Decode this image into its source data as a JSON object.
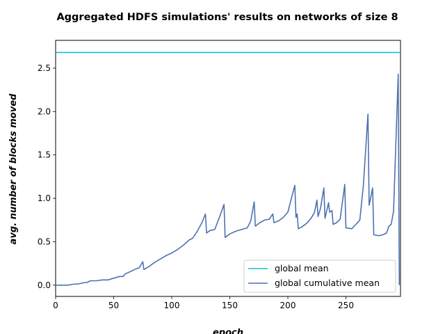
{
  "chart_data": {
    "type": "line",
    "title": "Aggregated HDFS simulations' results on networks of size 8",
    "xlabel": "epoch",
    "ylabel": "avg. number of blocks moved",
    "xlim": [
      0,
      297
    ],
    "ylim": [
      -0.13,
      2.82
    ],
    "x_ticks": [
      0,
      50,
      100,
      150,
      200,
      250
    ],
    "y_ticks": [
      0.0,
      0.5,
      1.0,
      1.5,
      2.0,
      2.5
    ],
    "x_tick_labels": [
      "0",
      "50",
      "100",
      "150",
      "200",
      "250"
    ],
    "y_tick_labels": [
      "0.0",
      "0.5",
      "1.0",
      "1.5",
      "2.0",
      "2.5"
    ],
    "grid": false,
    "legend_position": "lower-right",
    "series": [
      {
        "name": "global mean",
        "color": "#17becf",
        "kind": "hline",
        "y": 2.68
      },
      {
        "name": "global cumulative mean",
        "color": "#4c72b0",
        "kind": "line",
        "points": [
          [
            0,
            0.0
          ],
          [
            5,
            0.0
          ],
          [
            10,
            0.0
          ],
          [
            15,
            0.01
          ],
          [
            20,
            0.015
          ],
          [
            25,
            0.03
          ],
          [
            27,
            0.03
          ],
          [
            30,
            0.05
          ],
          [
            35,
            0.05
          ],
          [
            40,
            0.06
          ],
          [
            45,
            0.06
          ],
          [
            50,
            0.08
          ],
          [
            55,
            0.1
          ],
          [
            58,
            0.1
          ],
          [
            60,
            0.13
          ],
          [
            65,
            0.16
          ],
          [
            68,
            0.18
          ],
          [
            72,
            0.2
          ],
          [
            75,
            0.27
          ],
          [
            76,
            0.18
          ],
          [
            80,
            0.21
          ],
          [
            85,
            0.26
          ],
          [
            90,
            0.3
          ],
          [
            95,
            0.34
          ],
          [
            100,
            0.37
          ],
          [
            105,
            0.41
          ],
          [
            110,
            0.46
          ],
          [
            115,
            0.52
          ],
          [
            118,
            0.54
          ],
          [
            122,
            0.62
          ],
          [
            126,
            0.72
          ],
          [
            129,
            0.82
          ],
          [
            130,
            0.6
          ],
          [
            133,
            0.63
          ],
          [
            137,
            0.64
          ],
          [
            141,
            0.78
          ],
          [
            145,
            0.93
          ],
          [
            146,
            0.55
          ],
          [
            150,
            0.59
          ],
          [
            155,
            0.62
          ],
          [
            160,
            0.64
          ],
          [
            165,
            0.66
          ],
          [
            168,
            0.74
          ],
          [
            171,
            0.96
          ],
          [
            172,
            0.68
          ],
          [
            176,
            0.72
          ],
          [
            180,
            0.75
          ],
          [
            184,
            0.76
          ],
          [
            187,
            0.82
          ],
          [
            188,
            0.72
          ],
          [
            192,
            0.74
          ],
          [
            196,
            0.78
          ],
          [
            200,
            0.84
          ],
          [
            204,
            1.05
          ],
          [
            206,
            1.15
          ],
          [
            207,
            0.78
          ],
          [
            208,
            0.82
          ],
          [
            209,
            0.65
          ],
          [
            212,
            0.67
          ],
          [
            216,
            0.71
          ],
          [
            220,
            0.77
          ],
          [
            223,
            0.84
          ],
          [
            225,
            0.98
          ],
          [
            226,
            0.79
          ],
          [
            228,
            0.88
          ],
          [
            231,
            1.12
          ],
          [
            232,
            0.77
          ],
          [
            235,
            0.95
          ],
          [
            236,
            0.84
          ],
          [
            238,
            0.86
          ],
          [
            239,
            0.7
          ],
          [
            242,
            0.72
          ],
          [
            245,
            0.76
          ],
          [
            249,
            1.16
          ],
          [
            250,
            0.66
          ],
          [
            255,
            0.65
          ],
          [
            260,
            0.72
          ],
          [
            262,
            0.75
          ],
          [
            265,
            1.15
          ],
          [
            269,
            1.97
          ],
          [
            270,
            0.92
          ],
          [
            273,
            1.12
          ],
          [
            274,
            0.58
          ],
          [
            278,
            0.57
          ],
          [
            282,
            0.58
          ],
          [
            285,
            0.6
          ],
          [
            287,
            0.68
          ],
          [
            289,
            0.7
          ],
          [
            291,
            0.85
          ],
          [
            295,
            2.43
          ],
          [
            296,
            0.0
          ]
        ]
      }
    ]
  }
}
